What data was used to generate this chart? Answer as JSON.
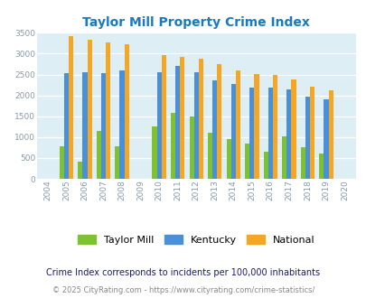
{
  "title": "Taylor Mill Property Crime Index",
  "years": [
    "2004",
    "2005",
    "2006",
    "2007",
    "2008",
    "2009",
    "2010",
    "2011",
    "2012",
    "2013",
    "2014",
    "2015",
    "2016",
    "2017",
    "2018",
    "2019",
    "2020"
  ],
  "taylor_mill": [
    0,
    780,
    410,
    1150,
    790,
    0,
    1250,
    1580,
    1500,
    1110,
    950,
    850,
    640,
    1020,
    750,
    610,
    0
  ],
  "kentucky": [
    0,
    2540,
    2560,
    2540,
    2600,
    0,
    2560,
    2710,
    2560,
    2370,
    2270,
    2190,
    2190,
    2140,
    1970,
    1900,
    0
  ],
  "national": [
    0,
    3420,
    3340,
    3270,
    3220,
    0,
    2960,
    2920,
    2870,
    2740,
    2600,
    2510,
    2490,
    2380,
    2210,
    2120,
    0
  ],
  "taylor_mill_color": "#7cc231",
  "kentucky_color": "#4a90d9",
  "national_color": "#f5a623",
  "bg_color": "#deeef5",
  "title_color": "#1a7abf",
  "subtitle": "Crime Index corresponds to incidents per 100,000 inhabitants",
  "subtitle_color": "#1a1a6e",
  "footer": "© 2025 CityRating.com - https://www.cityrating.com/crime-statistics/",
  "footer_color": "#888888",
  "ylim": [
    0,
    3500
  ],
  "yticks": [
    0,
    500,
    1000,
    1500,
    2000,
    2500,
    3000,
    3500
  ],
  "bar_width": 0.25
}
